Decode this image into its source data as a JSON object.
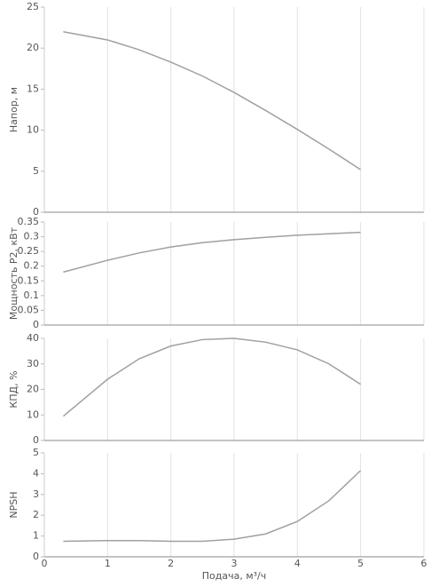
{
  "chart_data": [
    {
      "type": "line",
      "y_label": "Напор, м",
      "x": [
        0.3,
        1,
        1.5,
        2,
        2.5,
        3,
        3.5,
        4,
        4.5,
        5
      ],
      "values": [
        22,
        21,
        19.8,
        18.3,
        16.6,
        14.6,
        12.4,
        10.1,
        7.7,
        5.2
      ],
      "color": "#a0a0a0",
      "xlim": [
        0,
        6
      ],
      "xticks": [
        0,
        1,
        2,
        3,
        4,
        5,
        6
      ],
      "ylim": [
        0,
        25
      ],
      "yticks": [
        0,
        5,
        10,
        15,
        20,
        25
      ],
      "grid": true
    },
    {
      "type": "line",
      "y_label": "Мощность P2, кВт",
      "x": [
        0.3,
        1,
        1.5,
        2,
        2.5,
        3,
        3.5,
        4,
        4.5,
        5
      ],
      "values": [
        0.18,
        0.22,
        0.245,
        0.265,
        0.28,
        0.29,
        0.298,
        0.305,
        0.31,
        0.315
      ],
      "color": "#a0a0a0",
      "xlim": [
        0,
        6
      ],
      "xticks": [
        0,
        1,
        2,
        3,
        4,
        5,
        6
      ],
      "ylim": [
        0,
        0.35
      ],
      "yticks": [
        0,
        0.05,
        0.1,
        0.15,
        0.2,
        0.25,
        0.3,
        0.35
      ],
      "grid": true
    },
    {
      "type": "line",
      "y_label": "КПД, %",
      "x": [
        0.3,
        1,
        1.5,
        2,
        2.5,
        3,
        3.5,
        4,
        4.5,
        5
      ],
      "values": [
        9.5,
        24,
        32,
        37,
        39.5,
        40,
        38.5,
        35.5,
        30,
        22
      ],
      "color": "#a0a0a0",
      "xlim": [
        0,
        6
      ],
      "xticks": [
        0,
        1,
        2,
        3,
        4,
        5,
        6
      ],
      "ylim": [
        0,
        40
      ],
      "yticks": [
        0,
        10,
        20,
        30,
        40
      ],
      "grid": true
    },
    {
      "type": "line",
      "y_label": "NPSH",
      "x_label": "Подача, м³/ч",
      "x": [
        0.3,
        1,
        1.5,
        2,
        2.5,
        3,
        3.5,
        4,
        4.5,
        5
      ],
      "values": [
        0.75,
        0.78,
        0.78,
        0.75,
        0.75,
        0.85,
        1.1,
        1.7,
        2.7,
        4.15
      ],
      "color": "#a0a0a0",
      "xlim": [
        0,
        6
      ],
      "xticks": [
        0,
        1,
        2,
        3,
        4,
        5,
        6
      ],
      "ylim": [
        0,
        5
      ],
      "yticks": [
        0,
        1,
        2,
        3,
        4,
        5
      ],
      "grid": true
    }
  ]
}
